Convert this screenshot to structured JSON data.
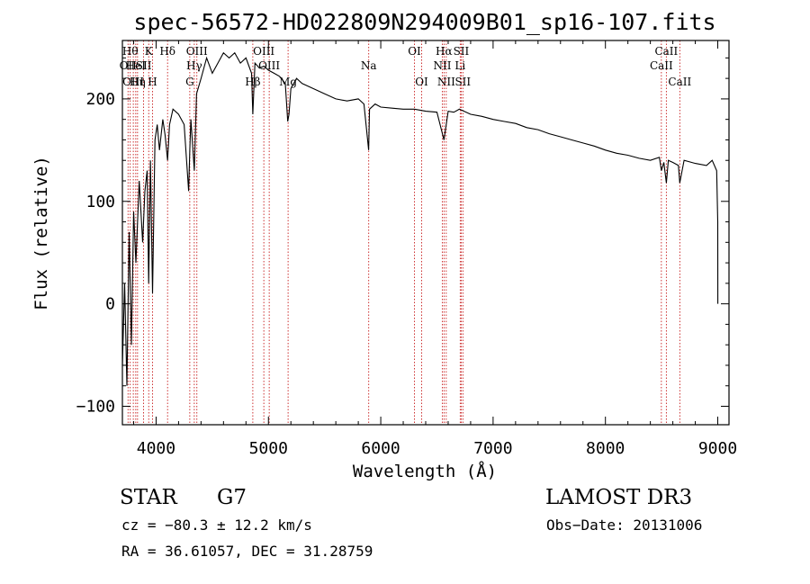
{
  "chart_data": {
    "type": "line",
    "title": "spec-56572-HD022809N294009B01_sp16-107.fits",
    "xlabel": "Wavelength (Å)",
    "ylabel": "Flux (relative)",
    "xlim": [
      3700,
      9100
    ],
    "ylim": [
      -118,
      257
    ],
    "xticks": [
      4000,
      5000,
      6000,
      7000,
      8000,
      9000
    ],
    "yticks": [
      -100,
      0,
      100,
      200
    ],
    "series": [
      {
        "name": "flux",
        "x": [
          3700,
          3720,
          3740,
          3760,
          3780,
          3800,
          3820,
          3850,
          3880,
          3900,
          3920,
          3934,
          3950,
          3968,
          3990,
          4010,
          4030,
          4060,
          4080,
          4102,
          4120,
          4150,
          4200,
          4250,
          4290,
          4300,
          4310,
          4340,
          4360,
          4400,
          4450,
          4500,
          4550,
          4600,
          4650,
          4700,
          4750,
          4800,
          4850,
          4861,
          4880,
          4920,
          4960,
          5000,
          5050,
          5100,
          5150,
          5172,
          5183,
          5200,
          5250,
          5300,
          5400,
          5500,
          5600,
          5700,
          5800,
          5850,
          5892,
          5900,
          5950,
          6000,
          6100,
          6200,
          6300,
          6400,
          6500,
          6563,
          6600,
          6650,
          6700,
          6800,
          6900,
          7000,
          7100,
          7200,
          7300,
          7400,
          7500,
          7600,
          7700,
          7800,
          7900,
          8000,
          8100,
          8200,
          8300,
          8400,
          8480,
          8498,
          8520,
          8542,
          8560,
          8600,
          8650,
          8662,
          8700,
          8800,
          8900,
          8950,
          8990,
          9000,
          9001
        ],
        "values": [
          -60,
          20,
          -80,
          70,
          -40,
          90,
          40,
          120,
          60,
          110,
          130,
          20,
          140,
          10,
          160,
          175,
          150,
          180,
          165,
          140,
          175,
          190,
          185,
          175,
          110,
          150,
          180,
          130,
          205,
          220,
          240,
          225,
          235,
          245,
          240,
          245,
          235,
          240,
          225,
          185,
          235,
          230,
          232,
          228,
          225,
          222,
          215,
          178,
          185,
          210,
          220,
          215,
          210,
          205,
          200,
          198,
          200,
          195,
          150,
          190,
          195,
          192,
          191,
          190,
          190,
          188,
          187,
          160,
          188,
          187,
          190,
          185,
          183,
          180,
          178,
          176,
          172,
          170,
          166,
          163,
          160,
          157,
          154,
          150,
          147,
          145,
          142,
          140,
          143,
          130,
          138,
          118,
          140,
          138,
          135,
          118,
          140,
          137,
          135,
          140,
          130,
          80,
          0
        ]
      }
    ],
    "lines": [
      {
        "wave": 3750,
        "label": "OII",
        "row": 2
      },
      {
        "wave": 3770,
        "label": "Hθ",
        "row": 1
      },
      {
        "wave": 3797,
        "label": "OIII",
        "row": 3
      },
      {
        "wave": 3819,
        "label": "HeI",
        "row": 2
      },
      {
        "wave": 3835,
        "label": "Hη",
        "row": 3
      },
      {
        "wave": 3889,
        "label": "SII",
        "row": 2
      },
      {
        "wave": 3934,
        "label": "K",
        "row": 1
      },
      {
        "wave": 3968,
        "label": "H",
        "row": 3
      },
      {
        "wave": 4102,
        "label": "Hδ",
        "row": 1
      },
      {
        "wave": 4300,
        "label": "G",
        "row": 3
      },
      {
        "wave": 4340,
        "label": "Hγ",
        "row": 2
      },
      {
        "wave": 4363,
        "label": "OIII",
        "row": 1
      },
      {
        "wave": 4861,
        "label": "Hβ",
        "row": 3
      },
      {
        "wave": 4959,
        "label": "OIII",
        "row": 1
      },
      {
        "wave": 5007,
        "label": "OIII",
        "row": 2
      },
      {
        "wave": 5175,
        "label": "Mg",
        "row": 3
      },
      {
        "wave": 5893,
        "label": "Na",
        "row": 2
      },
      {
        "wave": 6300,
        "label": "OI",
        "row": 1
      },
      {
        "wave": 6364,
        "label": "OI",
        "row": 3
      },
      {
        "wave": 6548,
        "label": "NII",
        "row": 2
      },
      {
        "wave": 6563,
        "label": "Hα",
        "row": 1
      },
      {
        "wave": 6583,
        "label": "NII",
        "row": 3
      },
      {
        "wave": 6707,
        "label": "Li",
        "row": 2
      },
      {
        "wave": 6716,
        "label": "SII",
        "row": 1
      },
      {
        "wave": 6731,
        "label": "SII",
        "row": 3
      },
      {
        "wave": 8498,
        "label": "CaII",
        "row": 2
      },
      {
        "wave": 8542,
        "label": "CaII",
        "row": 1
      },
      {
        "wave": 8662,
        "label": "CaII",
        "row": 3
      }
    ]
  },
  "info": {
    "object_class": "STAR",
    "subclass": "G7",
    "survey": "LAMOST DR3",
    "cz": "cz = −80.3 ± 12.2 km/s",
    "obs_date": "Obs−Date: 20131006",
    "coords": "RA =  36.61057, DEC =  31.28759"
  },
  "colors": {
    "line_marker": "#c00000",
    "spectrum": "#000000"
  }
}
